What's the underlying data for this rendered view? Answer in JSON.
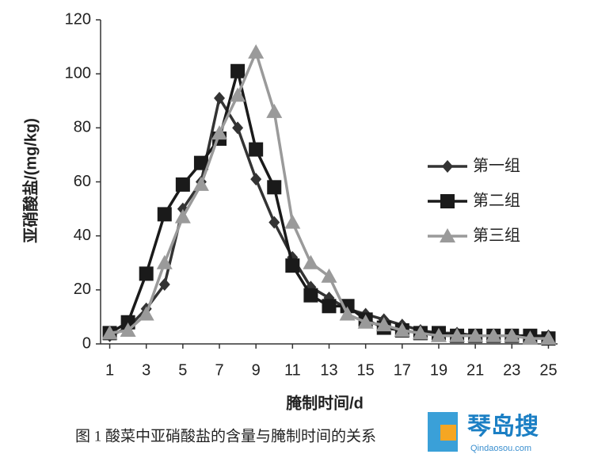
{
  "chart_data": {
    "type": "line",
    "y_label": "亚硝酸盐/(mg/kg)",
    "x_label": "腌制时间/d",
    "caption": "图 1   酸菜中亚硝酸盐的含量与腌制时间的关系",
    "watermark": "琴岛搜",
    "watermark_url": "Qindaosou.com",
    "x": [
      1,
      2,
      3,
      4,
      5,
      6,
      7,
      8,
      9,
      10,
      11,
      12,
      13,
      14,
      15,
      16,
      17,
      18,
      19,
      20,
      21,
      22,
      23,
      24,
      25
    ],
    "xlim": [
      0.5,
      25.5
    ],
    "xticks": [
      1,
      3,
      5,
      7,
      9,
      11,
      13,
      15,
      17,
      19,
      21,
      23,
      25
    ],
    "ylim": [
      0,
      120
    ],
    "yticks": [
      0,
      20,
      40,
      60,
      80,
      100,
      120
    ],
    "legend": "right",
    "series": [
      {
        "name": "第一组",
        "color": "#333333",
        "marker": "diamond",
        "values": [
          3,
          6,
          13,
          22,
          50,
          60,
          91,
          80,
          61,
          45,
          32,
          21,
          17,
          13,
          11,
          9,
          7,
          5,
          4,
          4,
          3,
          3,
          3,
          3,
          3
        ]
      },
      {
        "name": "第二组",
        "color": "#1a1a1a",
        "marker": "square",
        "values": [
          4,
          8,
          26,
          48,
          59,
          67,
          76,
          101,
          72,
          58,
          29,
          18,
          14,
          14,
          9,
          6,
          5,
          4,
          4,
          3,
          3,
          3,
          3,
          3,
          2
        ]
      },
      {
        "name": "第三组",
        "color": "#9a9a9a",
        "marker": "triangle",
        "values": [
          4,
          5,
          11,
          30,
          47,
          59,
          78,
          92,
          108,
          86,
          45,
          30,
          25,
          11,
          8,
          7,
          5,
          4,
          3,
          3,
          3,
          3,
          3,
          2,
          2
        ]
      }
    ]
  }
}
